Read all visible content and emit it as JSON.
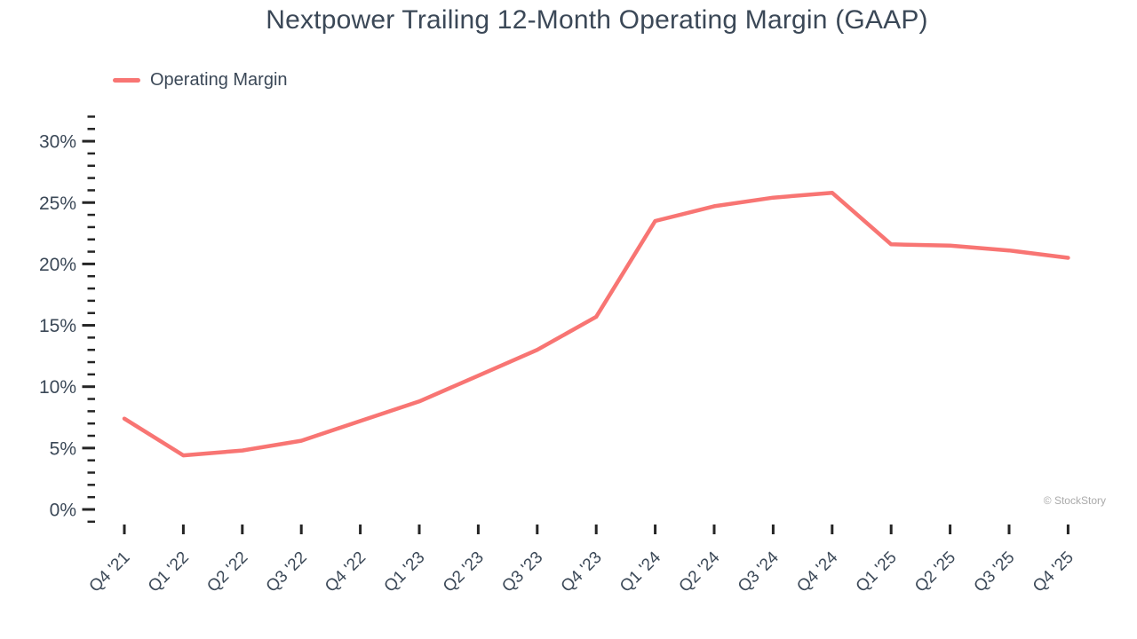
{
  "page": {
    "watermark": "© StockStory",
    "background_color": "#ffffff"
  },
  "chart_data": {
    "type": "line",
    "title": "Nextpower Trailing 12-Month Operating Margin (GAAP)",
    "legend": [
      "Operating Margin"
    ],
    "legend_position": "top-left",
    "categories": [
      "Q4 '21",
      "Q1 '22",
      "Q2 '22",
      "Q3 '22",
      "Q4 '22",
      "Q1 '23",
      "Q2 '23",
      "Q3 '23",
      "Q4 '23",
      "Q1 '24",
      "Q2 '24",
      "Q3 '24",
      "Q4 '24",
      "Q1 '25",
      "Q2 '25",
      "Q3 '25",
      "Q4 '25"
    ],
    "series": [
      {
        "name": "Operating Margin",
        "color": "#f87573",
        "values": [
          7.4,
          4.4,
          4.8,
          5.6,
          7.2,
          8.8,
          10.9,
          13.0,
          15.7,
          23.5,
          24.7,
          25.4,
          25.8,
          21.6,
          21.5,
          21.1,
          20.5
        ]
      }
    ],
    "xlabel": "",
    "ylabel": "",
    "ylim": [
      -1,
      32
    ],
    "y_tick_values": [
      0,
      5,
      10,
      15,
      20,
      25,
      30
    ],
    "y_tick_labels": [
      "0%",
      "5%",
      "10%",
      "15%",
      "20%",
      "25%",
      "30%"
    ],
    "y_minor_tick_step": 1,
    "grid": false,
    "axis_tick_color": "#252525",
    "text_color": "#3b4857"
  }
}
